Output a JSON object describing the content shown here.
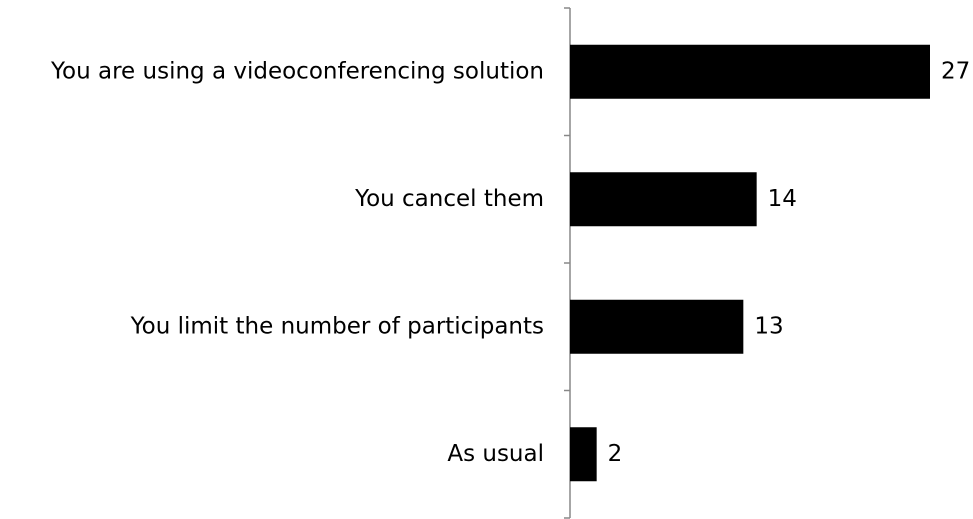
{
  "chart_data": {
    "type": "bar",
    "orientation": "horizontal",
    "categories": [
      "You are using a videoconferencing solution",
      "You cancel them",
      "You limit the number of participants",
      "As usual"
    ],
    "values": [
      27,
      14,
      13,
      2
    ],
    "color": "#000000"
  }
}
